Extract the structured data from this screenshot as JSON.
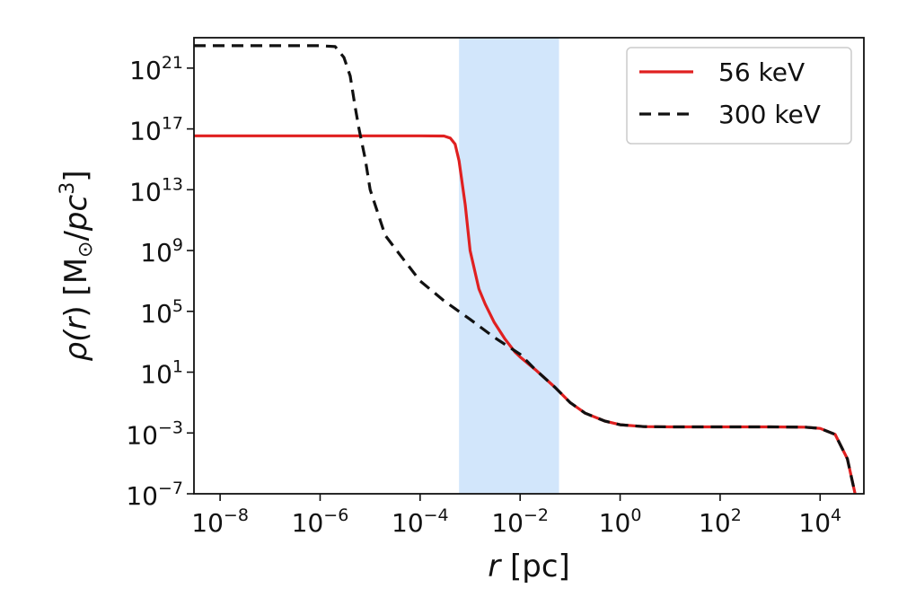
{
  "chart_data": {
    "type": "line",
    "xscale": "log",
    "yscale": "log",
    "xlim": [
      3e-09,
      75000
    ],
    "ylim": [
      1e-07,
      1e+23
    ],
    "xticks": [
      {
        "value": 1e-08,
        "base": "10",
        "exp": "−8"
      },
      {
        "value": 1e-06,
        "base": "10",
        "exp": "−6"
      },
      {
        "value": 0.0001,
        "base": "10",
        "exp": "−4"
      },
      {
        "value": 0.01,
        "base": "10",
        "exp": "−2"
      },
      {
        "value": 1,
        "base": "10",
        "exp": "0"
      },
      {
        "value": 100,
        "base": "10",
        "exp": "2"
      },
      {
        "value": 10000,
        "base": "10",
        "exp": "4"
      }
    ],
    "yticks": [
      {
        "value": 1e+21,
        "base": "10",
        "exp": "21"
      },
      {
        "value": 1e+17,
        "base": "10",
        "exp": "17"
      },
      {
        "value": 10000000000000.0,
        "base": "10",
        "exp": "13"
      },
      {
        "value": 1000000000.0,
        "base": "10",
        "exp": "9"
      },
      {
        "value": 100000.0,
        "base": "10",
        "exp": "5"
      },
      {
        "value": 10,
        "base": "10",
        "exp": "1"
      },
      {
        "value": 0.001,
        "base": "10",
        "exp": "−3"
      },
      {
        "value": 1e-07,
        "base": "10",
        "exp": "−7"
      }
    ],
    "xlabel": {
      "italic": "r",
      "rest": " [pc]"
    },
    "ylabel": {
      "rho": "ρ(",
      "r": "r",
      "close": ")",
      "unit_open": " [M",
      "sun": "⊙",
      "unit_mid": "/",
      "pc": "pc",
      "exp": "3",
      "unit_close": "]"
    },
    "grid": false,
    "legend_position": "top-right",
    "shaded_band": {
      "x_start": 0.0006,
      "x_end": 0.06,
      "color": "#d2e6fb"
    },
    "series": [
      {
        "name": "56 keV",
        "color": "#e02020",
        "dash": "solid",
        "points": [
          [
            3e-09,
            3.5e+16
          ],
          [
            1e-08,
            3.5e+16
          ],
          [
            1e-06,
            3.5e+16
          ],
          [
            0.0001,
            3.5e+16
          ],
          [
            0.0003,
            3.4e+16
          ],
          [
            0.0004,
            2.5e+16
          ],
          [
            0.0005,
            1e+16
          ],
          [
            0.0006,
            800000000000000.0
          ],
          [
            0.0008,
            1000000000000.0
          ],
          [
            0.001,
            1000000000.0
          ],
          [
            0.0015,
            3000000.0
          ],
          [
            0.002,
            300000.0
          ],
          [
            0.003,
            20000.0
          ],
          [
            0.005,
            1500.0
          ],
          [
            0.008,
            200
          ],
          [
            0.01,
            100
          ],
          [
            0.02,
            15
          ],
          [
            0.05,
            1
          ],
          [
            0.1,
            0.1
          ],
          [
            0.2,
            0.02
          ],
          [
            0.5,
            0.006
          ],
          [
            1,
            0.0035
          ],
          [
            3,
            0.0026
          ],
          [
            10,
            0.0025
          ],
          [
            100,
            0.0025
          ],
          [
            1000,
            0.0025
          ],
          [
            5000,
            0.0024
          ],
          [
            10000,
            0.002
          ],
          [
            20000,
            0.0008
          ],
          [
            35000,
            2e-05
          ],
          [
            45000,
            5e-07
          ],
          [
            50000,
            1e-07
          ]
        ]
      },
      {
        "name": "300 keV",
        "color": "#111111",
        "dash": "dashed",
        "points": [
          [
            3e-09,
            3e+22
          ],
          [
            1e-08,
            3e+22
          ],
          [
            1e-06,
            3e+22
          ],
          [
            2e-06,
            2.6e+22
          ],
          [
            3e-06,
            5e+21
          ],
          [
            4e-06,
            3e+20
          ],
          [
            5e-06,
            3e+18
          ],
          [
            6e-06,
            1e+17
          ],
          [
            8e-06,
            1000000000000000.0
          ],
          [
            1e-05,
            10000000000000.0
          ],
          [
            2e-05,
            10000000000.0
          ],
          [
            4e-05,
            500000000.0
          ],
          [
            0.0001,
            10000000.0
          ],
          [
            0.0003,
            500000.0
          ],
          [
            0.001,
            30000.0
          ],
          [
            0.003,
            2000.0
          ],
          [
            0.01,
            150
          ],
          [
            0.02,
            15
          ],
          [
            0.05,
            1
          ],
          [
            0.1,
            0.1
          ],
          [
            0.2,
            0.02
          ],
          [
            0.5,
            0.006
          ],
          [
            1,
            0.0035
          ],
          [
            3,
            0.0026
          ],
          [
            10,
            0.0025
          ],
          [
            100,
            0.0025
          ],
          [
            1000,
            0.0025
          ],
          [
            5000,
            0.0024
          ],
          [
            10000,
            0.002
          ],
          [
            20000,
            0.0008
          ],
          [
            35000,
            2e-05
          ],
          [
            45000,
            5e-07
          ],
          [
            50000,
            1e-07
          ]
        ]
      }
    ]
  }
}
